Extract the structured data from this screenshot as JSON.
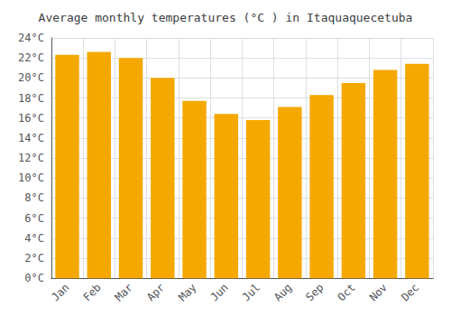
{
  "chart_data": {
    "type": "bar",
    "title": "Average monthly temperatures (°C ) in Itaquaquecetuba",
    "categories": [
      "Jan",
      "Feb",
      "Mar",
      "Apr",
      "May",
      "Jun",
      "Jul",
      "Aug",
      "Sep",
      "Oct",
      "Nov",
      "Dec"
    ],
    "values": [
      22.3,
      22.6,
      22.0,
      20.0,
      17.7,
      16.4,
      15.8,
      17.1,
      18.3,
      19.5,
      20.8,
      21.4
    ],
    "color": "#F5A800",
    "ylim": [
      0,
      24
    ],
    "yticks": [
      {
        "value": 0,
        "label": "0°C"
      },
      {
        "value": 2,
        "label": "2°C"
      },
      {
        "value": 4,
        "label": "4°C"
      },
      {
        "value": 6,
        "label": "6°C"
      },
      {
        "value": 8,
        "label": "8°C"
      },
      {
        "value": 10,
        "label": "10°C"
      },
      {
        "value": 12,
        "label": "12°C"
      },
      {
        "value": 14,
        "label": "14°C"
      },
      {
        "value": 16,
        "label": "16°C"
      },
      {
        "value": 18,
        "label": "18°C"
      },
      {
        "value": 20,
        "label": "20°C"
      },
      {
        "value": 22,
        "label": "22°C"
      },
      {
        "value": 24,
        "label": "24°C"
      }
    ],
    "grid": true
  }
}
